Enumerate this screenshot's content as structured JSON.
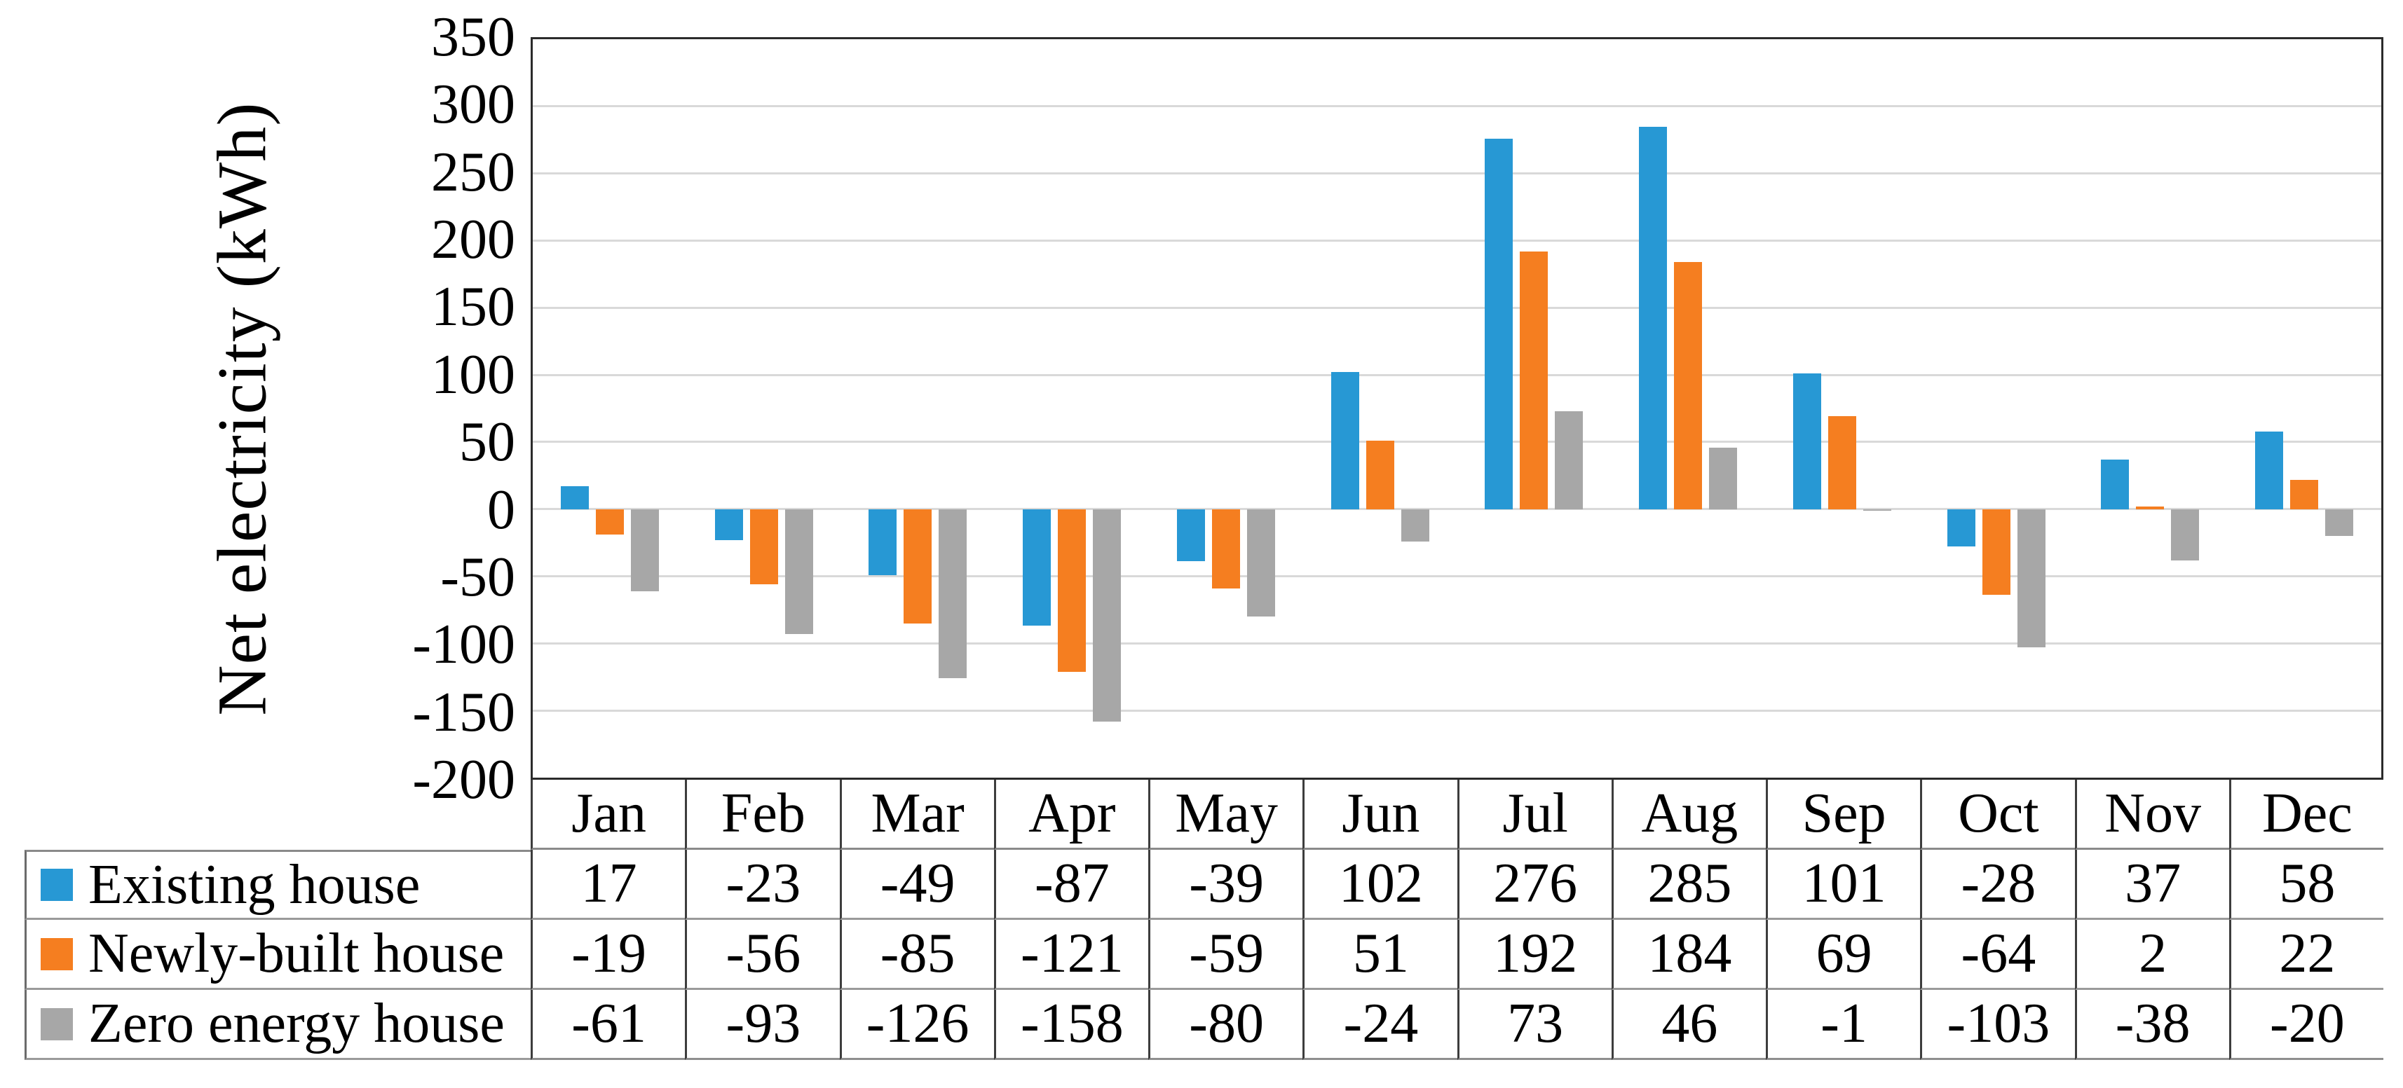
{
  "chart_data": {
    "type": "bar",
    "title": "",
    "ylabel": "Net electricity (kWh)",
    "categories": [
      "Jan",
      "Feb",
      "Mar",
      "Apr",
      "May",
      "Jun",
      "Jul",
      "Aug",
      "Sep",
      "Oct",
      "Nov",
      "Dec"
    ],
    "series": [
      {
        "name": "Existing house",
        "color": "#2798d4",
        "values": [
          17,
          -23,
          -49,
          -87,
          -39,
          102,
          276,
          285,
          101,
          -28,
          37,
          58
        ]
      },
      {
        "name": "Newly-built house",
        "color": "#f57e20",
        "values": [
          -19,
          -56,
          -85,
          -121,
          -59,
          51,
          192,
          184,
          69,
          -64,
          2,
          22
        ]
      },
      {
        "name": "Zero energy house",
        "color": "#a7a7a7",
        "values": [
          -61,
          -93,
          -126,
          -158,
          -80,
          -24,
          73,
          46,
          -1,
          -103,
          -38,
          -20
        ]
      }
    ],
    "ylim": [
      -200,
      350
    ],
    "ytick_step": 50,
    "yticks": [
      350,
      300,
      250,
      200,
      150,
      100,
      50,
      0,
      -50,
      -100,
      -150,
      -200
    ],
    "grid": "horizontal",
    "legend_position": "table-left",
    "colors": {
      "gridline": "#d9d9d9",
      "frame": "#2b2b2b",
      "table_line_dark": "#3d3d3d",
      "table_line_light": "#9a9a9a"
    }
  }
}
